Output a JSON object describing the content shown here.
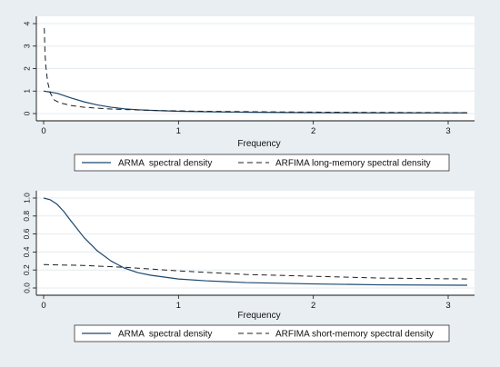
{
  "colors": {
    "background": "#e8eef2",
    "plot_background": "#ffffff",
    "grid": "#e4ecf0",
    "axis": "#111111",
    "arma_series": "#1a476f",
    "arfima_series": "#1f1f1f",
    "legend_border": "#333333"
  },
  "chart_data": [
    {
      "type": "line",
      "xlabel": "Frequency",
      "ylabel": "",
      "xlim": [
        0,
        3.1416
      ],
      "ylim": [
        0,
        4
      ],
      "xticks": [
        "0",
        "1",
        "2",
        "3"
      ],
      "yticks": [
        "0",
        "1",
        "2",
        "3",
        "4"
      ],
      "grid": true,
      "legend": "bottom",
      "series": [
        {
          "name": "ARMA  spectral density",
          "style": "solid",
          "x": [
            0,
            0.1,
            0.2,
            0.3,
            0.4,
            0.5,
            0.6,
            0.7,
            0.8,
            1.0,
            1.2,
            1.5,
            2.0,
            2.5,
            3.1416
          ],
          "y": [
            1.0,
            0.9,
            0.7,
            0.52,
            0.38,
            0.28,
            0.21,
            0.17,
            0.14,
            0.1,
            0.08,
            0.06,
            0.04,
            0.03,
            0.03
          ]
        },
        {
          "name": "ARFIMA long-memory spectral density",
          "style": "dashed",
          "x": [
            0.005,
            0.01,
            0.015,
            0.02,
            0.03,
            0.05,
            0.08,
            0.12,
            0.2,
            0.3,
            0.5,
            0.8,
            1.2,
            1.8,
            2.5,
            3.1416
          ],
          "y": [
            3.8,
            2.7,
            2.2,
            1.9,
            1.4,
            0.9,
            0.6,
            0.48,
            0.36,
            0.28,
            0.2,
            0.14,
            0.1,
            0.07,
            0.05,
            0.04
          ]
        }
      ]
    },
    {
      "type": "line",
      "xlabel": "Frequency",
      "ylabel": "",
      "xlim": [
        0,
        3.1416
      ],
      "ylim": [
        0,
        1
      ],
      "xticks": [
        "0",
        "1",
        "2",
        "3"
      ],
      "yticks": [
        "0.0",
        "0.2",
        "0.4",
        "0.6",
        "0.8",
        "1.0"
      ],
      "grid": true,
      "legend": "bottom",
      "series": [
        {
          "name": "ARMA  spectral density",
          "style": "solid",
          "x": [
            0,
            0.05,
            0.1,
            0.15,
            0.2,
            0.3,
            0.4,
            0.5,
            0.6,
            0.7,
            0.8,
            1.0,
            1.2,
            1.5,
            2.0,
            2.5,
            3.1416
          ],
          "y": [
            1.0,
            0.98,
            0.93,
            0.85,
            0.75,
            0.56,
            0.41,
            0.3,
            0.22,
            0.17,
            0.14,
            0.1,
            0.08,
            0.06,
            0.045,
            0.035,
            0.03
          ]
        },
        {
          "name": "ARFIMA short-memory spectral density",
          "style": "dashed",
          "x": [
            0,
            0.3,
            0.6,
            1.0,
            1.5,
            2.0,
            2.5,
            3.1416
          ],
          "y": [
            0.26,
            0.25,
            0.23,
            0.19,
            0.15,
            0.13,
            0.11,
            0.1
          ]
        }
      ]
    }
  ]
}
